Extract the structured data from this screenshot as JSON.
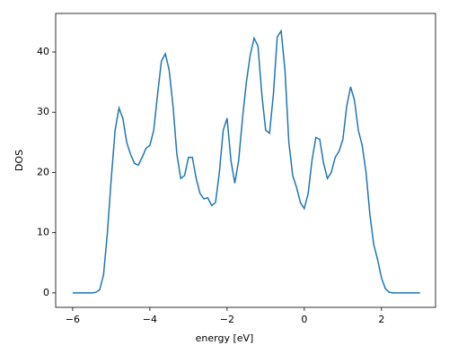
{
  "chart_data": {
    "type": "line",
    "xlabel": "energy [eV]",
    "ylabel": "DOS",
    "x": [
      -6.0,
      -5.9,
      -5.8,
      -5.7,
      -5.6,
      -5.5,
      -5.4,
      -5.3,
      -5.2,
      -5.1,
      -5.0,
      -4.9,
      -4.8,
      -4.7,
      -4.6,
      -4.5,
      -4.4,
      -4.3,
      -4.2,
      -4.1,
      -4.0,
      -3.9,
      -3.8,
      -3.7,
      -3.6,
      -3.5,
      -3.4,
      -3.3,
      -3.2,
      -3.1,
      -3.0,
      -2.9,
      -2.8,
      -2.7,
      -2.6,
      -2.5,
      -2.4,
      -2.3,
      -2.2,
      -2.1,
      -2.0,
      -1.9,
      -1.8,
      -1.7,
      -1.6,
      -1.5,
      -1.4,
      -1.3,
      -1.2,
      -1.1,
      -1.0,
      -0.9,
      -0.8,
      -0.7,
      -0.6,
      -0.5,
      -0.4,
      -0.3,
      -0.2,
      -0.1,
      0.0,
      0.1,
      0.2,
      0.3,
      0.4,
      0.5,
      0.6,
      0.7,
      0.8,
      0.9,
      1.0,
      1.1,
      1.2,
      1.3,
      1.4,
      1.5,
      1.6,
      1.7,
      1.8,
      1.9,
      2.0,
      2.1,
      2.2,
      2.3,
      2.4,
      2.5,
      2.6,
      2.7,
      2.8,
      2.9,
      3.0
    ],
    "series": [
      {
        "color": "#1f77b4",
        "values": [
          0,
          0,
          0,
          0,
          0,
          0,
          0.1,
          0.5,
          3,
          10,
          19,
          27,
          30.7,
          29,
          25,
          23,
          21.5,
          21.2,
          22.5,
          24,
          24.5,
          27,
          33,
          38.5,
          39.7,
          37,
          31,
          23,
          19,
          19.5,
          22.5,
          22.5,
          19,
          16.5,
          15.6,
          15.8,
          14.5,
          15,
          20,
          27,
          29,
          22,
          18.2,
          22,
          29,
          35,
          39.5,
          42.3,
          41,
          33,
          27,
          26.5,
          33,
          42.5,
          43.5,
          37,
          25,
          19.5,
          17.5,
          15,
          14,
          16.5,
          22,
          25.8,
          25.5,
          21.5,
          19,
          20,
          22.5,
          23.5,
          25.5,
          31,
          34.2,
          32,
          27,
          24.5,
          20,
          13,
          8,
          5.5,
          2.5,
          0.7,
          0.1,
          0,
          0,
          0,
          0,
          0,
          0,
          0,
          0
        ]
      }
    ],
    "xlim": [
      -6.44,
      3.4
    ],
    "ylim": [
      -2.4,
      46.4
    ],
    "xticks": [
      {
        "value": -6,
        "label": "−6"
      },
      {
        "value": -4,
        "label": "−4"
      },
      {
        "value": -2,
        "label": "−2"
      },
      0,
      2
    ],
    "yticks": [
      0,
      10,
      20,
      30,
      40
    ]
  }
}
